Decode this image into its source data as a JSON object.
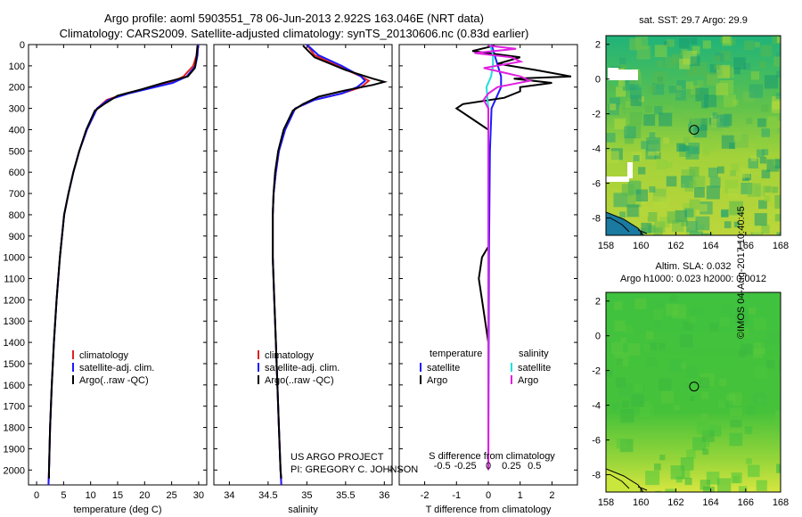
{
  "titles": {
    "line1": "Argo profile: aoml 5903551_78 06-Jun-2013 2.922S 163.046E (NRT data)",
    "line2": "Climatology: CARS2009. Satellite-adjusted climatology: synTS_20130606.nc (0.83d earlier)"
  },
  "footer": {
    "project": "US ARGO PROJECT",
    "pi": "PI: GREGORY C. JOHNSON",
    "imos": "©IMOS 04-Aug-2017 10:40:45"
  },
  "colors": {
    "clim": "#e02020",
    "sat": "#1a1aff",
    "argo": "#000000",
    "sat_sal": "#22dddd",
    "argo_sal": "#e020e0"
  },
  "chart_data": [
    {
      "type": "line",
      "id": "temperature",
      "xlabel": "temperature (deg C)",
      "ylabel": "",
      "xlim": [
        -1.5,
        31.5
      ],
      "ylim": [
        2070,
        0
      ],
      "xticks": [
        0,
        5,
        10,
        15,
        20,
        25,
        30
      ],
      "yticks": [
        0,
        100,
        200,
        300,
        400,
        500,
        600,
        700,
        800,
        900,
        1000,
        1100,
        1200,
        1300,
        1400,
        1500,
        1600,
        1700,
        1800,
        1900,
        2000
      ],
      "legend": [
        "climatology",
        "satellite-adj. clim.",
        "Argo(..raw -QC)"
      ],
      "series": [
        {
          "name": "climatology",
          "color": "clim",
          "depth": [
            0,
            50,
            100,
            150,
            180,
            200,
            230,
            260,
            300,
            400,
            500,
            600,
            700,
            800,
            1000,
            1200,
            1400,
            1600,
            1800,
            2000,
            2070
          ],
          "values": [
            29.8,
            29.6,
            29.0,
            27.2,
            24.8,
            21.5,
            16.5,
            13.0,
            11.2,
            9.3,
            7.9,
            6.8,
            5.9,
            5.1,
            4.3,
            3.7,
            3.2,
            2.8,
            2.5,
            2.3,
            2.2
          ]
        },
        {
          "name": "satellite-adj. clim.",
          "color": "sat",
          "depth": [
            0,
            50,
            100,
            150,
            180,
            200,
            230,
            260,
            300,
            400,
            500,
            600,
            700,
            800,
            1000,
            1200,
            1400,
            1600,
            1800,
            2000,
            2070
          ],
          "values": [
            29.9,
            29.8,
            29.4,
            27.8,
            25.2,
            22.0,
            17.0,
            13.3,
            11.2,
            9.3,
            7.9,
            6.8,
            5.9,
            5.1,
            4.3,
            3.7,
            3.2,
            2.8,
            2.5,
            2.3,
            2.2
          ]
        },
        {
          "name": "Argo(..raw -QC)",
          "color": "argo",
          "depth": [
            5,
            60,
            110,
            150,
            180,
            210,
            240,
            280,
            310,
            400,
            500,
            600,
            700,
            800,
            1000,
            1200,
            1400,
            1600,
            1800,
            2000,
            2040
          ],
          "values": [
            29.8,
            29.6,
            29.3,
            28.0,
            23.5,
            19.5,
            15.0,
            12.5,
            10.8,
            9.2,
            7.9,
            6.8,
            5.9,
            5.1,
            4.3,
            3.7,
            3.2,
            2.8,
            2.5,
            2.3,
            2.3
          ]
        }
      ]
    },
    {
      "type": "line",
      "id": "salinity",
      "xlabel": "salinity",
      "ylabel": "",
      "xlim": [
        33.8,
        36.1
      ],
      "ylim": [
        2070,
        0
      ],
      "xticks": [
        34,
        34.5,
        35,
        35.5,
        36
      ],
      "legend": [
        "climatology",
        "satellite-adj. clim.",
        "Argo(..raw -QC)"
      ],
      "series": [
        {
          "name": "climatology",
          "color": "clim",
          "depth": [
            0,
            50,
            100,
            150,
            170,
            200,
            230,
            260,
            300,
            400,
            500,
            600,
            700,
            800,
            1000,
            1200,
            1400,
            1600,
            1800,
            2000,
            2070
          ],
          "values": [
            35.0,
            35.1,
            35.4,
            35.7,
            35.8,
            35.7,
            35.45,
            35.1,
            34.85,
            34.72,
            34.64,
            34.6,
            34.57,
            34.56,
            34.56,
            34.58,
            34.6,
            34.62,
            34.64,
            34.66,
            34.67
          ]
        },
        {
          "name": "satellite-adj. clim.",
          "color": "sat",
          "depth": [
            0,
            50,
            100,
            150,
            170,
            200,
            230,
            260,
            300,
            400,
            500,
            600,
            700,
            800,
            1000,
            1200,
            1400,
            1600,
            1800,
            2000,
            2070
          ],
          "values": [
            35.0,
            35.15,
            35.45,
            35.7,
            35.75,
            35.65,
            35.45,
            35.1,
            34.85,
            34.72,
            34.64,
            34.6,
            34.57,
            34.56,
            34.56,
            34.58,
            34.6,
            34.62,
            34.64,
            34.66,
            34.67
          ]
        },
        {
          "name": "Argo(..raw -QC)",
          "color": "argo",
          "depth": [
            5,
            60,
            120,
            160,
            175,
            190,
            215,
            245,
            280,
            310,
            400,
            500,
            600,
            700,
            800,
            1000,
            1200,
            1400,
            1600,
            1800,
            2000,
            2040
          ],
          "values": [
            34.95,
            35.1,
            35.5,
            35.85,
            36.0,
            35.85,
            35.5,
            35.15,
            34.95,
            34.82,
            34.7,
            34.63,
            34.59,
            34.57,
            34.56,
            34.56,
            34.58,
            34.6,
            34.62,
            34.64,
            34.66,
            34.67
          ]
        }
      ]
    },
    {
      "type": "line",
      "id": "difference",
      "xlabel": "T difference from climatology",
      "xlabel_top": "S difference from climatology",
      "xlim": [
        -2.8,
        2.8
      ],
      "ylim": [
        2070,
        0
      ],
      "xticks": [
        -2,
        -1,
        0,
        1,
        2
      ],
      "xticklabels": [
        "-2",
        "-1",
        "0",
        "1",
        "2"
      ],
      "sticks": [
        -0.5,
        -0.25,
        0,
        0.25,
        0.5
      ],
      "sticklabels": [
        "-0.5",
        "-0.25",
        "0",
        "0.25",
        "0.5"
      ],
      "legend_headers": [
        "temperature",
        "salinity"
      ],
      "legend": [
        "satellite",
        "Argo",
        "satellite",
        "Argo"
      ],
      "series": [
        {
          "name": "T satellite",
          "color": "sat",
          "depth": [
            0,
            50,
            100,
            150,
            200,
            300,
            500,
            1000,
            2000
          ],
          "values": [
            0.1,
            0.2,
            0.3,
            0.4,
            0.4,
            0.1,
            0.05,
            0.02,
            0.0
          ]
        },
        {
          "name": "T Argo",
          "color": "argo",
          "depth": [
            5,
            30,
            60,
            90,
            120,
            150,
            160,
            180,
            200,
            220,
            250,
            280,
            300,
            350,
            400,
            500,
            600,
            800,
            950,
            1000,
            1100,
            1200,
            1400,
            2000
          ],
          "values": [
            0.2,
            -0.5,
            1.0,
            0.3,
            1.5,
            2.6,
            0.8,
            2.0,
            1.0,
            1.0,
            0.5,
            -0.8,
            -1.0,
            -0.5,
            0.0,
            0.0,
            0.0,
            0.0,
            0.0,
            -0.2,
            -0.3,
            -0.2,
            0.0,
            0.0
          ]
        },
        {
          "name": "S satellite",
          "color": "sat_sal",
          "depth": [
            0,
            50,
            100,
            150,
            200,
            300,
            500,
            1000,
            2000
          ],
          "values": [
            0.02,
            0.05,
            0.05,
            0.03,
            -0.02,
            0.0,
            0.0,
            0.0,
            0.0
          ]
        },
        {
          "name": "S Argo",
          "color": "argo_sal",
          "depth": [
            5,
            20,
            40,
            60,
            80,
            110,
            130,
            150,
            170,
            200,
            230,
            260,
            300,
            400,
            2000
          ],
          "values": [
            0.0,
            0.3,
            -0.15,
            0.25,
            0.35,
            -0.05,
            0.15,
            0.35,
            0.45,
            0.1,
            0.0,
            -0.05,
            0.0,
            0.0,
            0.0
          ]
        }
      ]
    },
    {
      "type": "heatmap",
      "id": "sst_map",
      "title": "sat. SST: 29.7 Argo: 29.9",
      "xlim": [
        158,
        168
      ],
      "ylim": [
        -9,
        2.5
      ],
      "xticks": [
        158,
        160,
        162,
        164,
        166,
        168
      ],
      "yticks": [
        2,
        0,
        -2,
        -4,
        -6,
        -8
      ],
      "marker": {
        "lon": 163.046,
        "lat": -2.922
      }
    },
    {
      "type": "heatmap",
      "id": "sla_map",
      "title": "Altim. SLA: 0.032",
      "subtitle": "Argo h1000: 0.023 h2000: 0.0012",
      "xlim": [
        158,
        168
      ],
      "ylim": [
        -9,
        2.5
      ],
      "xticks": [
        158,
        160,
        162,
        164,
        166,
        168
      ],
      "yticks": [
        2,
        0,
        -2,
        -4,
        -6,
        -8
      ],
      "marker": {
        "lon": 163.046,
        "lat": -2.922
      }
    }
  ]
}
